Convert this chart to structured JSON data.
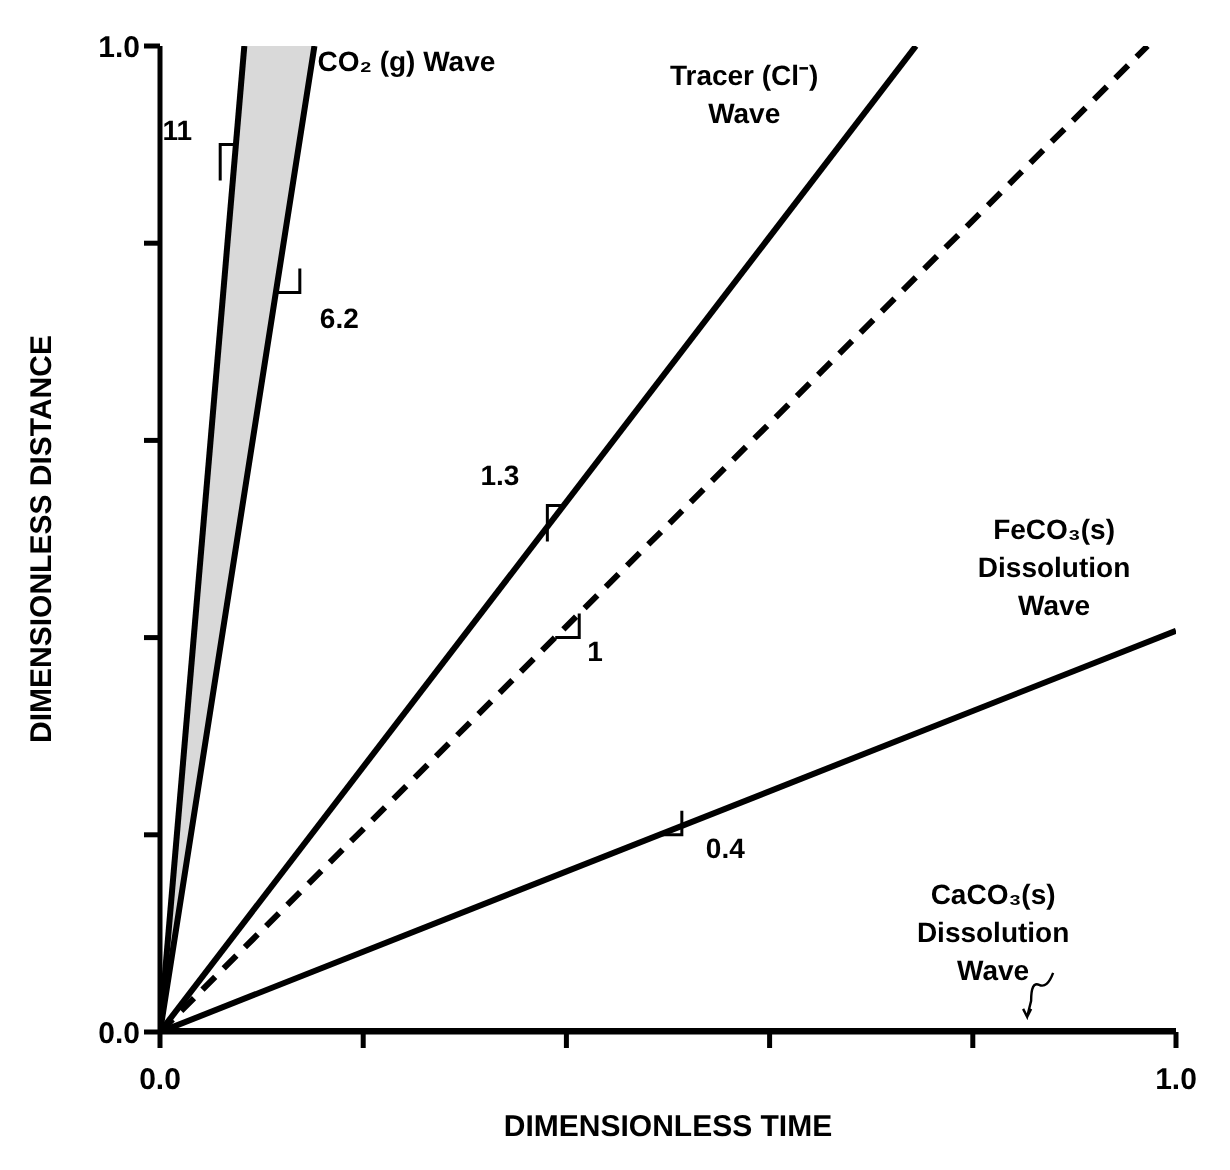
{
  "chart_data": {
    "type": "line",
    "xlabel": "DIMENSIONLESS TIME",
    "ylabel": "DIMENSIONLESS DISTANCE",
    "xlim": [
      0,
      1
    ],
    "ylim": [
      0,
      1
    ],
    "xticks": [
      {
        "value": 0,
        "label": "0.0"
      },
      {
        "value": 0.2,
        "label": null
      },
      {
        "value": 0.4,
        "label": null
      },
      {
        "value": 0.6,
        "label": null
      },
      {
        "value": 0.8,
        "label": null
      },
      {
        "value": 1,
        "label": "1.0"
      }
    ],
    "yticks": [
      {
        "value": 0,
        "label": "0.0"
      },
      {
        "value": 0.2,
        "label": null
      },
      {
        "value": 0.4,
        "label": null
      },
      {
        "value": 0.6,
        "label": null
      },
      {
        "value": 0.8,
        "label": null
      },
      {
        "value": 1,
        "label": "1.0"
      }
    ],
    "marker": "none",
    "series": [
      {
        "color": "#000000",
        "x": [
          0,
          0.083
        ],
        "values": [
          0,
          1
        ]
      },
      {
        "name": "CO₂ (g) Wave",
        "color": "#000000",
        "x": [
          0,
          0.083,
          0.152
        ],
        "values": [
          0,
          0.546,
          1
        ],
        "lower": [
          0,
          0.546,
          1
        ],
        "upper": [
          0,
          1,
          1
        ]
      },
      {
        "name": "Tracer (Cl⁻) Wave",
        "color": "#000000",
        "x": [
          0,
          0.744
        ],
        "values": [
          0,
          1
        ]
      },
      {
        "color": "#000000",
        "x": [
          0,
          0.972
        ],
        "values": [
          0,
          1
        ],
        "line_style": "dashed"
      },
      {
        "name": "FeCO₃(s) Dissolution Wave",
        "color": "#000000",
        "x": [
          0,
          1
        ],
        "values": [
          0,
          0.407
        ]
      },
      {
        "name": "CaCO₃(s) Dissolution Wave",
        "color": "#000000",
        "x": [
          0,
          1
        ],
        "values": [
          0,
          0
        ]
      }
    ],
    "annotations": [
      {
        "text": "11",
        "x": 0.075,
        "y": 0.9
      },
      {
        "text": "6.2",
        "x": 0.114,
        "y": 0.75
      },
      {
        "text": "1.3",
        "x": 0.397,
        "y": 0.534
      },
      {
        "text": "1",
        "x": 0.389,
        "y": 0.4
      },
      {
        "text": "0.4",
        "x": 0.49,
        "y": 0.2
      }
    ]
  }
}
